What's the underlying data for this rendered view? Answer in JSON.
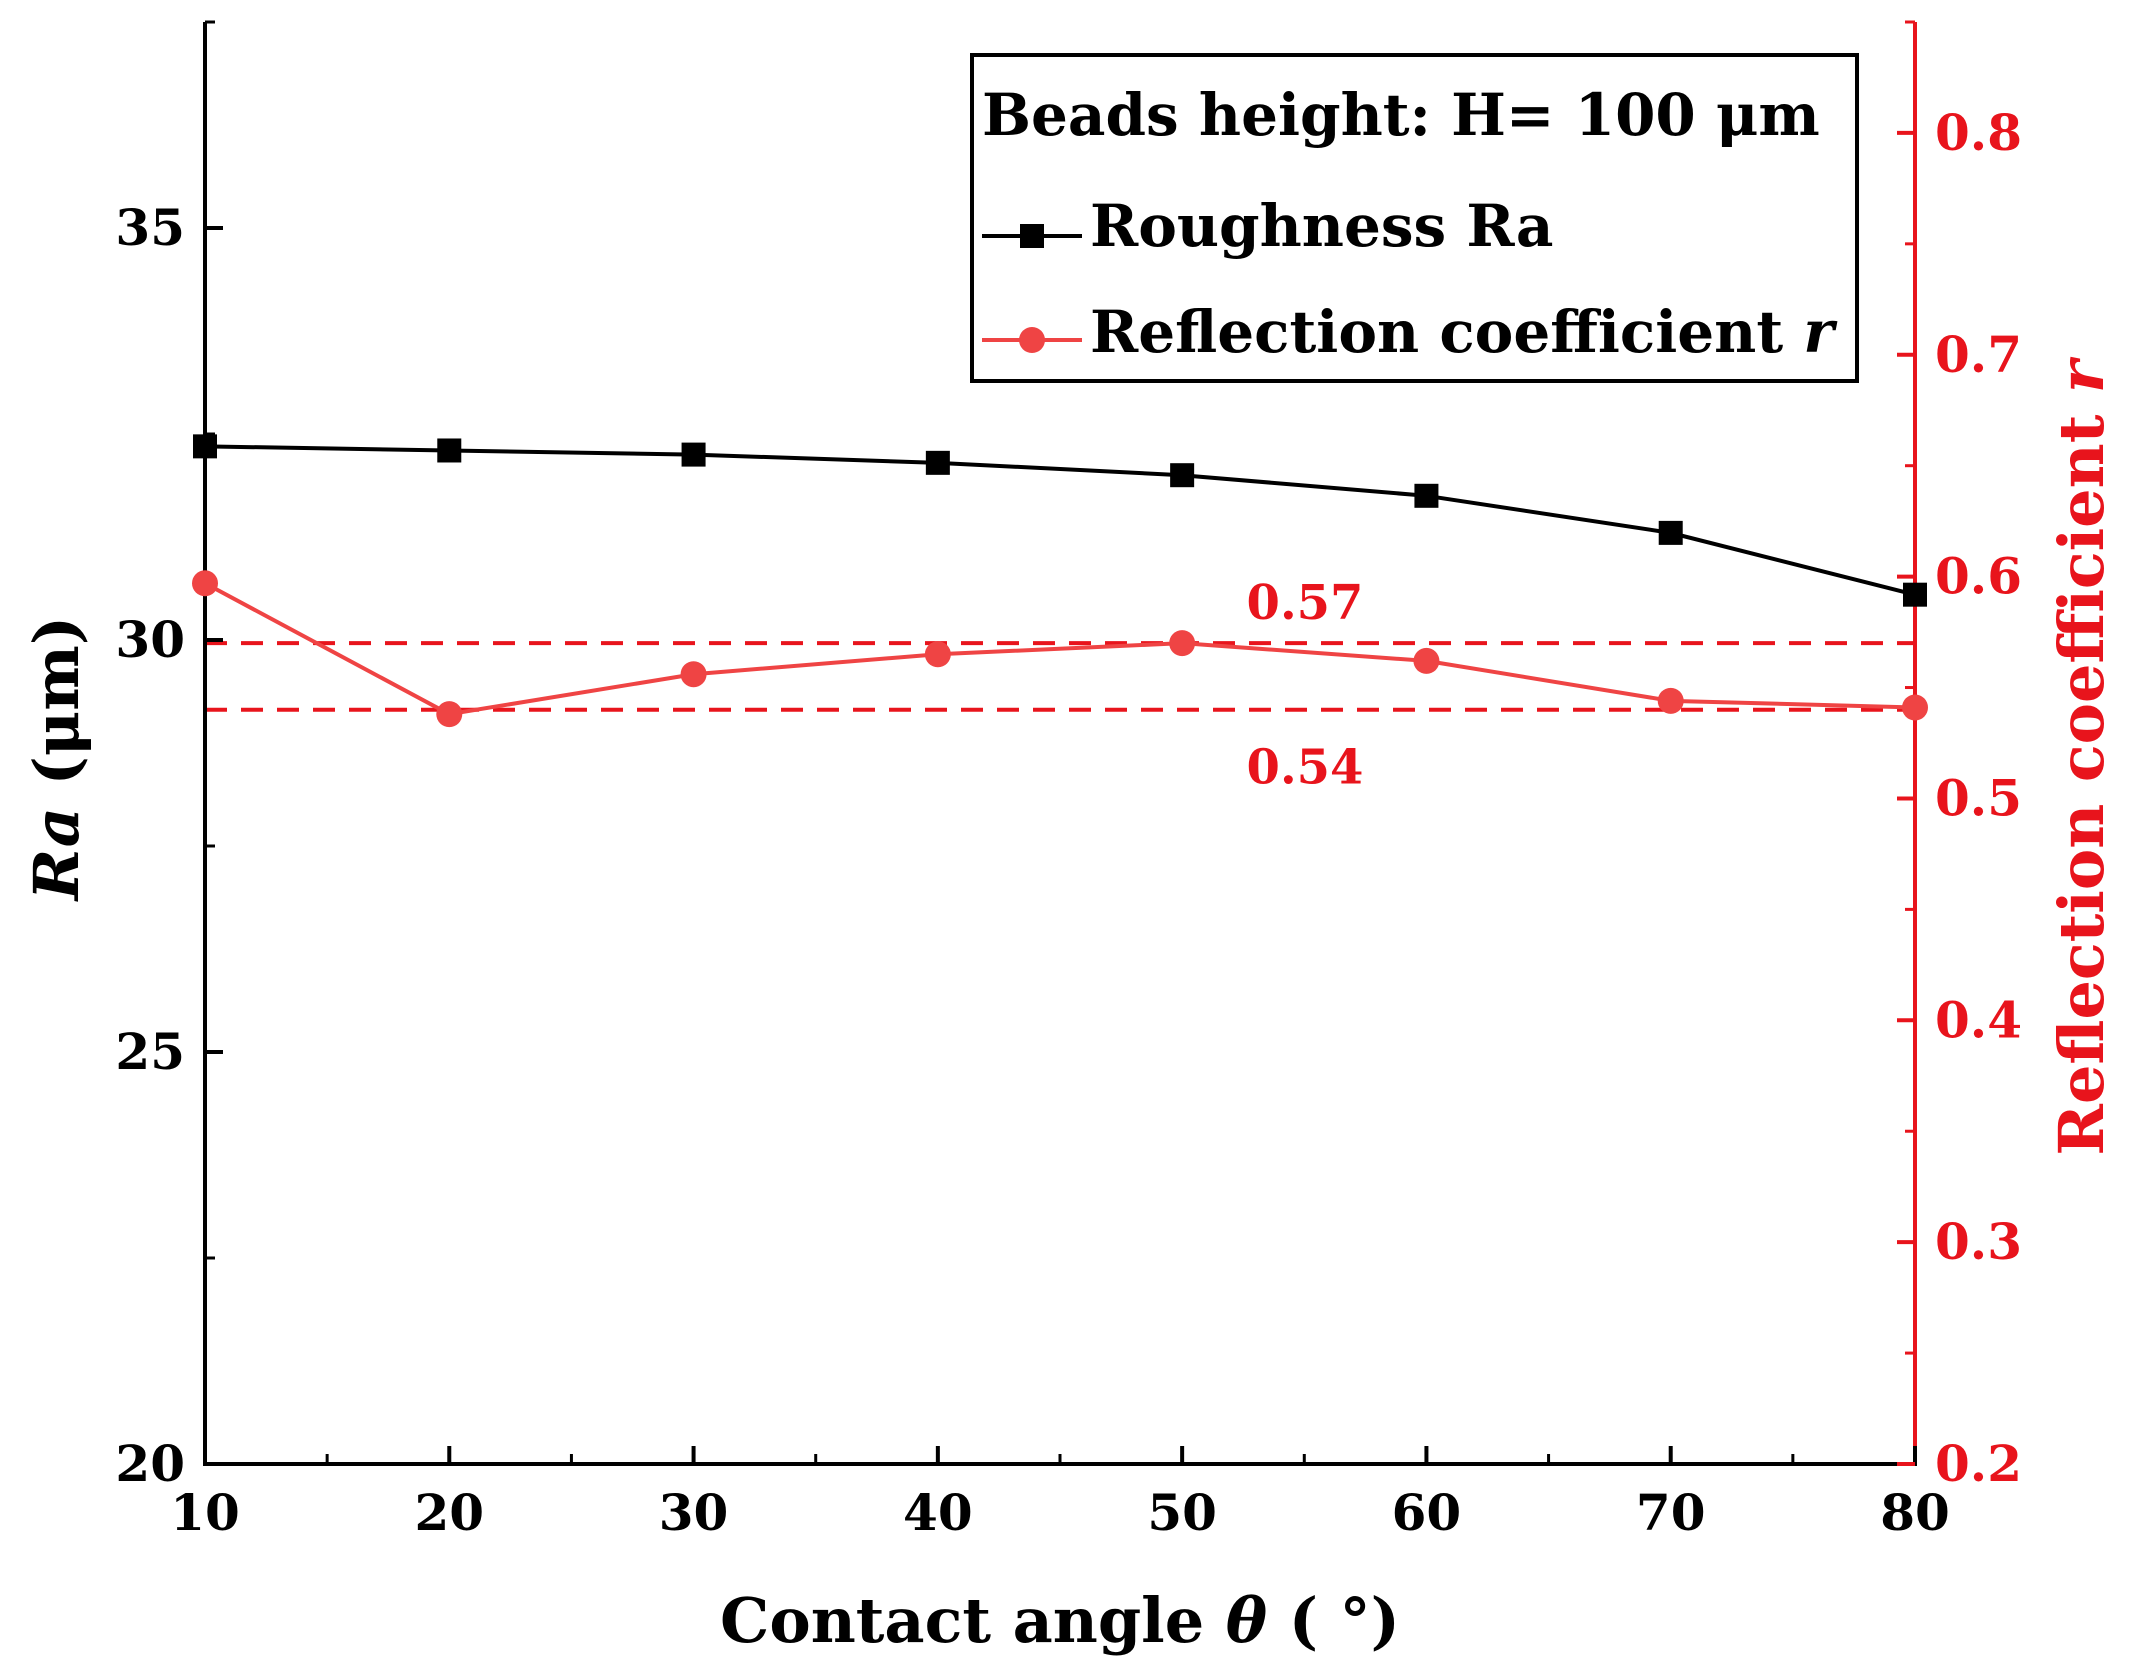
{
  "colors": {
    "roughness": "#000000",
    "reflection": "#ef4444",
    "right_axis": "#e8141c",
    "reference_line": "#e8141c"
  },
  "chart_data": {
    "type": "line",
    "x": [
      10,
      20,
      30,
      40,
      50,
      60,
      70,
      80
    ],
    "xlabel": {
      "pre": "Contact angle ",
      "italic": "θ",
      "post": " ( °)"
    },
    "xlim": [
      10,
      80
    ],
    "xticks": [
      "10",
      "20",
      "30",
      "40",
      "50",
      "60",
      "70",
      "80"
    ],
    "ylabel_left": {
      "italic": "Ra",
      "post": " (μm)"
    },
    "ylim_left": [
      20,
      37.5
    ],
    "yticks_left": [
      "20",
      "25",
      "30",
      "35"
    ],
    "ylabel_right": {
      "pre": "Reflection coefficient ",
      "italic": "r"
    },
    "ylim_right": [
      0.2,
      0.85
    ],
    "yticks_right": [
      "0.2",
      "0.3",
      "0.4",
      "0.5",
      "0.6",
      "0.7",
      "0.8"
    ],
    "series": [
      {
        "name": "Roughness Ra",
        "axis": "left",
        "marker": "square",
        "values": [
          32.35,
          32.3,
          32.25,
          32.15,
          32.0,
          31.75,
          31.3,
          30.55
        ]
      },
      {
        "name": "Reflection coefficient r",
        "axis": "right",
        "marker": "circle",
        "values": [
          0.597,
          0.538,
          0.556,
          0.565,
          0.57,
          0.562,
          0.544,
          0.541
        ]
      }
    ],
    "reference_lines": [
      {
        "axis": "right",
        "value": 0.57,
        "label": "0.57"
      },
      {
        "axis": "right",
        "value": 0.54,
        "label": "0.54"
      }
    ],
    "legend": {
      "title": "Beads height: H= 100 μm",
      "entries": [
        {
          "label": "Roughness Ra"
        },
        {
          "label": "Reflection coefficient ",
          "italic": "r"
        }
      ],
      "placement": "top-right"
    }
  }
}
